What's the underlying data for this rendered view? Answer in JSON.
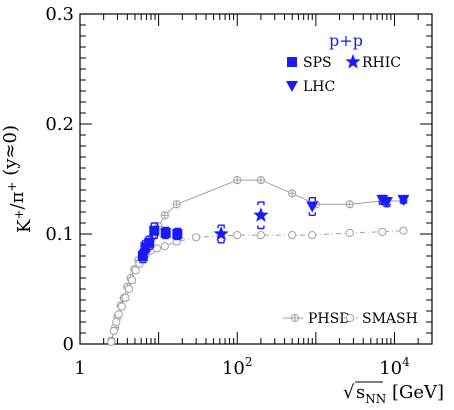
{
  "chart_data": {
    "type": "scatter",
    "title": "",
    "ylabel": "K+/π+ (y≈0)",
    "xlabel": "√sNN [GeV]",
    "xscale": "log",
    "xlim": [
      1,
      30000
    ],
    "ylim": [
      0,
      0.3
    ],
    "grid": false,
    "y_ticks": [
      0,
      0.1,
      0.2,
      0.3
    ],
    "y_tick_labels": [
      "0",
      "0.1",
      "0.2",
      "0.3"
    ],
    "x_ticks": [
      1,
      100,
      10000
    ],
    "x_tick_labels": [
      "1",
      "10",
      "10"
    ],
    "x_tick_exponents": [
      "",
      "2",
      "4"
    ],
    "legend_group_title": "p+p",
    "legend_placement": "top-right",
    "series": [
      {
        "name": "SPS",
        "marker": "square",
        "color": "#1a1aff",
        "style": "points",
        "points": [
          {
            "x": 6.3,
            "y": 0.08,
            "err": 0.006
          },
          {
            "x": 6.8,
            "y": 0.088,
            "err": 0.006
          },
          {
            "x": 7.6,
            "y": 0.092,
            "err": 0.006
          },
          {
            "x": 8.8,
            "y": 0.103,
            "err": 0.007
          },
          {
            "x": 12.3,
            "y": 0.101,
            "err": 0.005
          },
          {
            "x": 17.3,
            "y": 0.1,
            "err": 0.005
          }
        ]
      },
      {
        "name": "RHIC",
        "marker": "star",
        "color": "#1a1aff",
        "style": "points",
        "points": [
          {
            "x": 62.4,
            "y": 0.1,
            "err": 0.008
          },
          {
            "x": 200,
            "y": 0.117,
            "err": 0.012
          }
        ]
      },
      {
        "name": "LHC",
        "marker": "triangle-down",
        "color": "#1a1aff",
        "style": "points",
        "points": [
          {
            "x": 900,
            "y": 0.125,
            "err": 0.008
          },
          {
            "x": 7000,
            "y": 0.131,
            "err": 0.004
          },
          {
            "x": 8000,
            "y": 0.129,
            "err": 0.004
          },
          {
            "x": 13000,
            "y": 0.131,
            "err": 0.003
          }
        ]
      },
      {
        "name": "PHSD",
        "marker": "circle-cross",
        "color": "#a0a0a0",
        "style": "line-solid",
        "points": [
          {
            "x": 2.5,
            "y": 0.003
          },
          {
            "x": 2.8,
            "y": 0.015
          },
          {
            "x": 3.0,
            "y": 0.025
          },
          {
            "x": 3.3,
            "y": 0.035
          },
          {
            "x": 3.6,
            "y": 0.042
          },
          {
            "x": 4.0,
            "y": 0.052
          },
          {
            "x": 4.4,
            "y": 0.06
          },
          {
            "x": 4.9,
            "y": 0.068
          },
          {
            "x": 5.5,
            "y": 0.076
          },
          {
            "x": 6.3,
            "y": 0.083
          },
          {
            "x": 7.2,
            "y": 0.09
          },
          {
            "x": 8.3,
            "y": 0.097
          },
          {
            "x": 10.0,
            "y": 0.107
          },
          {
            "x": 12.0,
            "y": 0.117
          },
          {
            "x": 17.0,
            "y": 0.127
          },
          {
            "x": 100,
            "y": 0.149
          },
          {
            "x": 200,
            "y": 0.149
          },
          {
            "x": 500,
            "y": 0.137
          },
          {
            "x": 1000,
            "y": 0.127
          },
          {
            "x": 2700,
            "y": 0.127
          },
          {
            "x": 7000,
            "y": 0.13
          },
          {
            "x": 13000,
            "y": 0.13
          }
        ]
      },
      {
        "name": "SMASH",
        "marker": "circle-open",
        "color": "#a0a0a0",
        "style": "line-dashdot",
        "points": [
          {
            "x": 2.5,
            "y": 0.002
          },
          {
            "x": 2.7,
            "y": 0.012
          },
          {
            "x": 2.9,
            "y": 0.02
          },
          {
            "x": 3.1,
            "y": 0.027
          },
          {
            "x": 3.4,
            "y": 0.034
          },
          {
            "x": 3.8,
            "y": 0.042
          },
          {
            "x": 4.2,
            "y": 0.05
          },
          {
            "x": 4.6,
            "y": 0.058
          },
          {
            "x": 5.1,
            "y": 0.067
          },
          {
            "x": 5.7,
            "y": 0.073
          },
          {
            "x": 6.3,
            "y": 0.078
          },
          {
            "x": 7.0,
            "y": 0.082
          },
          {
            "x": 8.0,
            "y": 0.085
          },
          {
            "x": 9.5,
            "y": 0.087
          },
          {
            "x": 12.0,
            "y": 0.089
          },
          {
            "x": 17.0,
            "y": 0.093
          },
          {
            "x": 30.0,
            "y": 0.097
          },
          {
            "x": 100,
            "y": 0.099
          },
          {
            "x": 200,
            "y": 0.099
          },
          {
            "x": 500,
            "y": 0.099
          },
          {
            "x": 900,
            "y": 0.099
          },
          {
            "x": 2700,
            "y": 0.101
          },
          {
            "x": 7000,
            "y": 0.102
          },
          {
            "x": 13000,
            "y": 0.103
          }
        ]
      }
    ]
  }
}
